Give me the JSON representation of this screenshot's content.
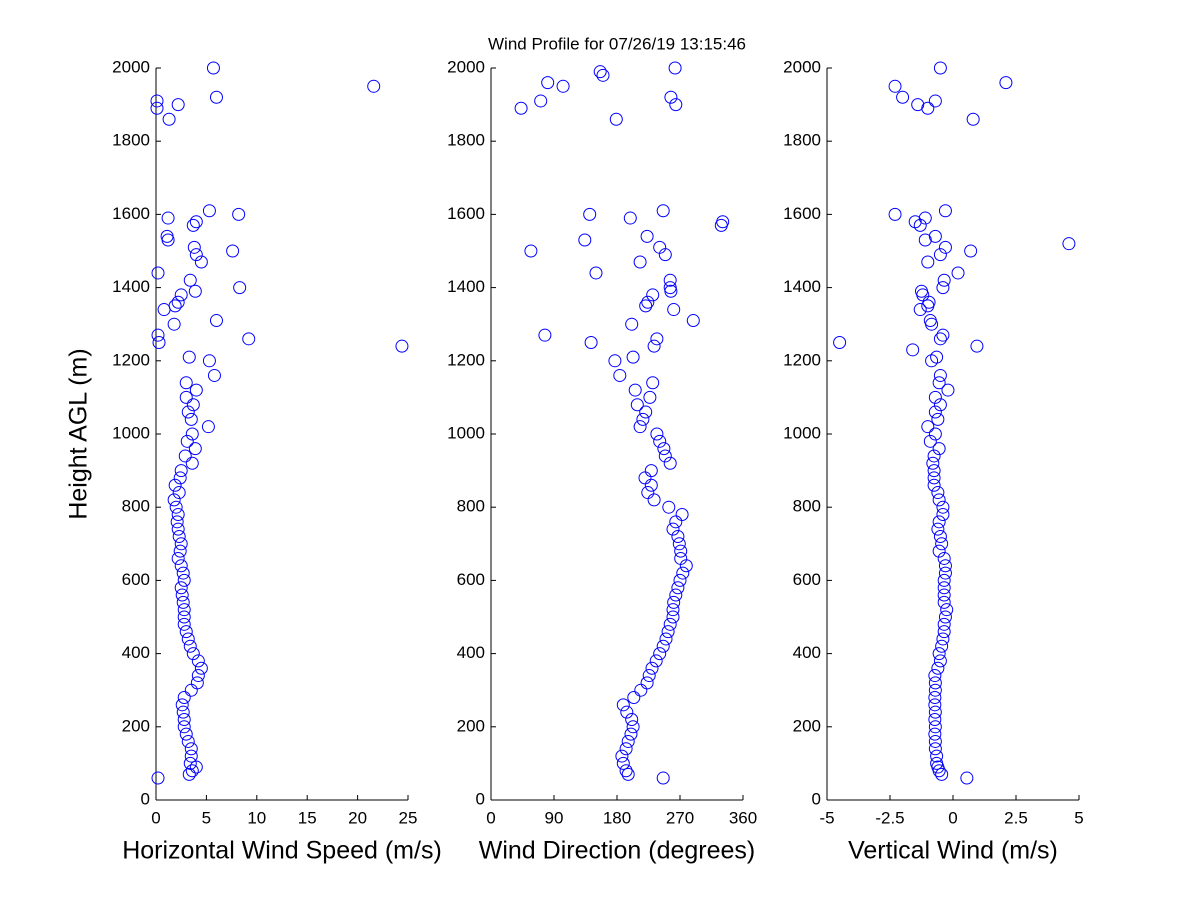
{
  "chart_data": [
    {
      "type": "scatter",
      "xlabel": "Horizontal Wind Speed (m/s)",
      "ylabel": "Height AGL (m)",
      "color": "#0000ff",
      "xlim": [
        0,
        25
      ],
      "xticks": [
        0,
        5,
        10,
        15,
        20,
        25
      ],
      "ylim": [
        0,
        2000
      ],
      "yticks": [
        0,
        200,
        400,
        600,
        800,
        1000,
        1200,
        1400,
        1600,
        1800,
        2000
      ],
      "y": [
        60,
        70,
        80,
        90,
        100,
        120,
        140,
        160,
        180,
        200,
        220,
        240,
        260,
        280,
        300,
        320,
        340,
        360,
        380,
        400,
        420,
        440,
        460,
        480,
        500,
        520,
        540,
        560,
        580,
        600,
        620,
        640,
        660,
        680,
        700,
        720,
        740,
        760,
        780,
        800,
        820,
        840,
        860,
        880,
        900,
        920,
        940,
        960,
        980,
        1000,
        1020,
        1040,
        1060,
        1080,
        1100,
        1120,
        1140,
        1160,
        1200,
        1210,
        1240,
        1250,
        1260,
        1270,
        1300,
        1310,
        1340,
        1350,
        1360,
        1380,
        1390,
        1400,
        1420,
        1440,
        1470,
        1490,
        1500,
        1510,
        1530,
        1540,
        1570,
        1580,
        1590,
        1600,
        1610,
        1860,
        1890,
        1900,
        1910,
        1920,
        1950,
        2000
      ],
      "x": [
        0.2,
        3.3,
        3.6,
        4.0,
        3.4,
        3.5,
        3.5,
        3.2,
        3.0,
        2.8,
        2.8,
        2.7,
        2.6,
        2.8,
        3.5,
        4.1,
        4.2,
        4.5,
        4.2,
        3.7,
        3.4,
        3.2,
        3.0,
        2.8,
        2.8,
        2.8,
        2.7,
        2.6,
        2.5,
        2.8,
        2.7,
        2.5,
        2.2,
        2.4,
        2.5,
        2.3,
        2.2,
        2.1,
        2.2,
        2.0,
        1.8,
        2.3,
        1.9,
        2.4,
        2.5,
        3.6,
        2.9,
        3.9,
        3.1,
        3.6,
        5.2,
        3.5,
        3.2,
        3.7,
        3.0,
        4.0,
        3.0,
        5.8,
        5.3,
        3.3,
        24.4,
        0.3,
        9.2,
        0.2,
        1.8,
        6.0,
        0.8,
        1.9,
        2.2,
        2.5,
        3.9,
        8.3,
        3.4,
        0.2,
        4.5,
        4.0,
        7.6,
        3.8,
        1.2,
        1.1,
        3.7,
        4.0,
        1.2,
        8.2,
        5.3,
        1.3,
        0.1,
        2.2,
        0.1,
        6.0,
        21.6,
        5.7
      ]
    },
    {
      "type": "scatter",
      "title": "Wind Profile for  07/26/19 13:15:46",
      "xlabel": "Wind Direction (degrees)",
      "color": "#0000ff",
      "xlim": [
        0,
        360
      ],
      "xticks": [
        0,
        90,
        180,
        270,
        360
      ],
      "ylim": [
        0,
        2000
      ],
      "yticks": [
        0,
        200,
        400,
        600,
        800,
        1000,
        1200,
        1400,
        1600,
        1800,
        2000
      ],
      "y": [
        60,
        70,
        80,
        100,
        120,
        140,
        160,
        180,
        200,
        220,
        240,
        260,
        280,
        300,
        320,
        340,
        360,
        380,
        400,
        420,
        440,
        460,
        480,
        500,
        520,
        540,
        560,
        580,
        600,
        620,
        640,
        660,
        680,
        700,
        720,
        740,
        760,
        780,
        800,
        820,
        840,
        860,
        880,
        900,
        920,
        940,
        960,
        980,
        1000,
        1020,
        1040,
        1060,
        1080,
        1100,
        1120,
        1140,
        1160,
        1200,
        1210,
        1240,
        1250,
        1260,
        1270,
        1300,
        1310,
        1340,
        1350,
        1360,
        1380,
        1390,
        1400,
        1420,
        1440,
        1470,
        1490,
        1500,
        1510,
        1530,
        1540,
        1570,
        1580,
        1590,
        1600,
        1610,
        1860,
        1890,
        1900,
        1910,
        1920,
        1950,
        1960,
        1980,
        1990,
        2000
      ],
      "x": [
        246,
        196,
        193,
        189,
        187,
        193,
        196,
        200,
        203,
        201,
        194,
        189,
        204,
        214,
        223,
        226,
        230,
        236,
        241,
        246,
        250,
        253,
        256,
        260,
        260,
        261,
        264,
        267,
        270,
        274,
        279,
        271,
        271,
        269,
        267,
        260,
        264,
        273,
        254,
        233,
        224,
        229,
        220,
        229,
        256,
        249,
        247,
        241,
        237,
        213,
        217,
        221,
        209,
        227,
        206,
        231,
        184,
        177,
        203,
        233,
        143,
        237,
        77,
        201,
        289,
        261,
        221,
        224,
        231,
        257,
        256,
        256,
        150,
        213,
        249,
        57,
        241,
        134,
        223,
        329,
        331,
        199,
        141,
        246,
        179,
        43,
        264,
        71,
        257,
        103,
        81,
        160,
        156,
        263
      ]
    },
    {
      "type": "scatter",
      "xlabel": "Vertical Wind (m/s)",
      "color": "#0000ff",
      "xlim": [
        -5,
        5
      ],
      "xticks": [
        -5,
        -2.5,
        0,
        2.5,
        5
      ],
      "ylim": [
        0,
        2000
      ],
      "yticks": [
        0,
        200,
        400,
        600,
        800,
        1000,
        1200,
        1400,
        1600,
        1800,
        2000
      ],
      "y": [
        60,
        70,
        80,
        90,
        100,
        120,
        140,
        160,
        180,
        200,
        220,
        240,
        260,
        280,
        300,
        320,
        340,
        360,
        380,
        400,
        420,
        440,
        460,
        480,
        500,
        520,
        540,
        560,
        580,
        600,
        620,
        640,
        660,
        680,
        700,
        720,
        740,
        760,
        780,
        800,
        820,
        840,
        860,
        880,
        900,
        920,
        940,
        960,
        980,
        1000,
        1020,
        1040,
        1060,
        1080,
        1100,
        1120,
        1140,
        1160,
        1200,
        1210,
        1230,
        1240,
        1250,
        1260,
        1270,
        1300,
        1310,
        1340,
        1350,
        1360,
        1380,
        1390,
        1400,
        1420,
        1440,
        1470,
        1490,
        1500,
        1510,
        1520,
        1530,
        1540,
        1570,
        1580,
        1590,
        1600,
        1610,
        1860,
        1890,
        1900,
        1910,
        1920,
        1950,
        1960,
        2000
      ],
      "x": [
        0.55,
        -0.45,
        -0.55,
        -0.6,
        -0.65,
        -0.65,
        -0.7,
        -0.7,
        -0.72,
        -0.7,
        -0.72,
        -0.7,
        -0.72,
        -0.72,
        -0.7,
        -0.7,
        -0.72,
        -0.6,
        -0.5,
        -0.55,
        -0.45,
        -0.4,
        -0.35,
        -0.35,
        -0.3,
        -0.25,
        -0.35,
        -0.35,
        -0.35,
        -0.35,
        -0.3,
        -0.3,
        -0.35,
        -0.55,
        -0.45,
        -0.5,
        -0.6,
        -0.55,
        -0.4,
        -0.4,
        -0.55,
        -0.6,
        -0.75,
        -0.75,
        -0.75,
        -0.8,
        -0.75,
        -0.55,
        -0.9,
        -0.7,
        -1.0,
        -0.6,
        -0.7,
        -0.5,
        -0.7,
        -0.2,
        -0.55,
        -0.5,
        -0.85,
        -0.65,
        -1.6,
        0.95,
        -4.5,
        -0.5,
        -0.4,
        -0.85,
        -0.9,
        -1.3,
        -1.0,
        -0.95,
        -1.2,
        -1.25,
        -0.4,
        -0.35,
        0.2,
        -1.0,
        -0.5,
        0.7,
        -0.3,
        4.6,
        -1.1,
        -0.7,
        -1.3,
        -1.5,
        -1.1,
        -2.3,
        -0.3,
        0.8,
        -1.0,
        -1.4,
        -0.7,
        -2.0,
        -2.3,
        2.1,
        -0.5
      ]
    }
  ]
}
